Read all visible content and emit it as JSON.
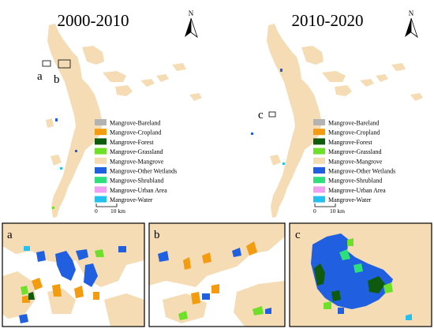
{
  "maps": [
    {
      "title": "2000-2010",
      "north": "N",
      "scale_zero": "0",
      "scale_label": "10 km"
    },
    {
      "title": "2010-2020",
      "north": "N",
      "scale_zero": "0",
      "scale_label": "10 km"
    }
  ],
  "inset_labels": {
    "a": "a",
    "b": "b",
    "c": "c"
  },
  "legend": [
    {
      "label": "Mangrove-Bareland",
      "color": "#b3b3b3"
    },
    {
      "label": "Mangrove-Cropland",
      "color": "#f39c12"
    },
    {
      "label": "Mangrove-Forest",
      "color": "#0e5a0e"
    },
    {
      "label": "Mangrove-Grassland",
      "color": "#6fe02a"
    },
    {
      "label": "Mangrove-Mangrove",
      "color": "#f5dcb4"
    },
    {
      "label": "Mangrove-Other Wetlands",
      "color": "#1f5fe0"
    },
    {
      "label": "Mangrove-Shrubland",
      "color": "#2ee07a"
    },
    {
      "label": "Mangrove-Urban Area",
      "color": "#f0a0f0"
    },
    {
      "label": "Mangrove-Water",
      "color": "#23c0f0"
    }
  ],
  "colors": {
    "mangrove": "#f5dcb4",
    "frame": "#000000"
  }
}
